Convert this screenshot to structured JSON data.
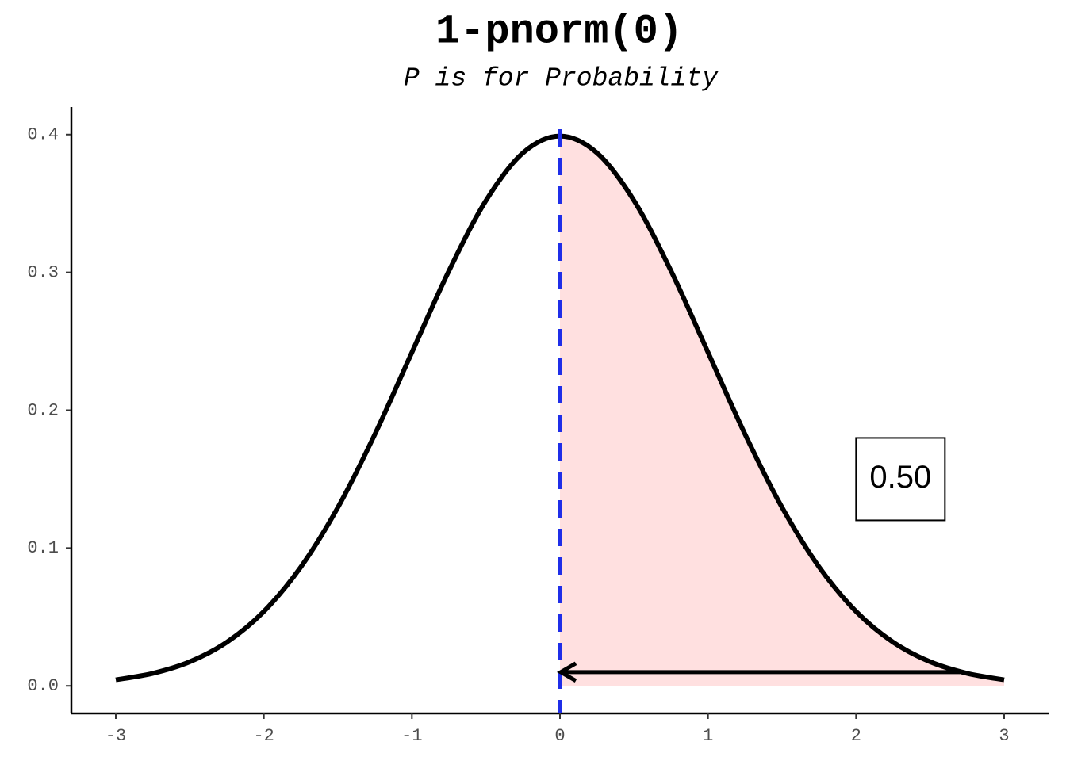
{
  "chart_data": {
    "type": "line",
    "title": "1-pnorm(0)",
    "subtitle": "P is for Probability",
    "x": [
      -3,
      -2.75,
      -2.5,
      -2.25,
      -2,
      -1.75,
      -1.5,
      -1.25,
      -1,
      -0.75,
      -0.5,
      -0.25,
      0,
      0.25,
      0.5,
      0.75,
      1,
      1.25,
      1.5,
      1.75,
      2,
      2.25,
      2.5,
      2.75,
      3
    ],
    "series": [
      {
        "color": "#000000",
        "values": [
          0.0044,
          0.0091,
          0.0175,
          0.0317,
          0.054,
          0.0863,
          0.1295,
          0.1826,
          0.242,
          0.3011,
          0.3521,
          0.3867,
          0.3989,
          0.3867,
          0.3521,
          0.3011,
          0.242,
          0.1826,
          0.1295,
          0.0863,
          0.054,
          0.0317,
          0.0175,
          0.0091,
          0.0044
        ]
      }
    ],
    "vline": {
      "x": 0,
      "color": "#1f2ee8"
    },
    "shade_color": "#ffe0e0",
    "arrow": {
      "x": [
        2.7,
        0
      ],
      "y": 0.01
    },
    "annotation": {
      "text": "0.50",
      "x": 2.3,
      "y": 0.15
    },
    "xlim": [
      -3.3,
      3.3
    ],
    "xticks": [
      -3,
      -2,
      -1,
      0,
      1,
      2,
      3
    ],
    "ylim": [
      -0.02,
      0.42
    ],
    "yticks": [
      {
        "value": 0,
        "label": "0.0"
      },
      0.1,
      0.2,
      0.3,
      0.4
    ],
    "grid": false
  }
}
